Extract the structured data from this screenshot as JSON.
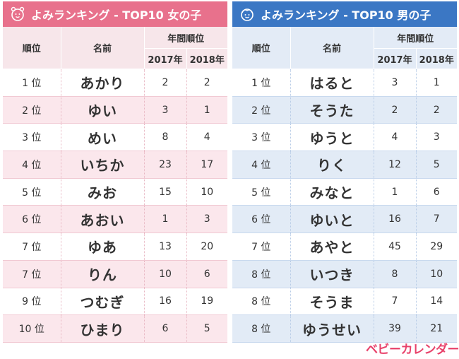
{
  "girls": {
    "title": "よみランキング - TOP10 女の子",
    "col_rank": "順位",
    "col_name": "名前",
    "col_yearly": "年間順位",
    "col_2017": "2017年",
    "col_2018": "2018年",
    "rows": [
      {
        "rank": "1 位",
        "name": "あかり",
        "y2017": "2",
        "y2018": "2"
      },
      {
        "rank": "2 位",
        "name": "ゆい",
        "y2017": "3",
        "y2018": "1"
      },
      {
        "rank": "3 位",
        "name": "めい",
        "y2017": "8",
        "y2018": "4"
      },
      {
        "rank": "4 位",
        "name": "いちか",
        "y2017": "23",
        "y2018": "17"
      },
      {
        "rank": "5 位",
        "name": "みお",
        "y2017": "15",
        "y2018": "10"
      },
      {
        "rank": "6 位",
        "name": "あおい",
        "y2017": "1",
        "y2018": "3"
      },
      {
        "rank": "7 位",
        "name": "ゆあ",
        "y2017": "13",
        "y2018": "20"
      },
      {
        "rank": "7 位",
        "name": "りん",
        "y2017": "10",
        "y2018": "6"
      },
      {
        "rank": "9 位",
        "name": "つむぎ",
        "y2017": "16",
        "y2018": "19"
      },
      {
        "rank": "10 位",
        "name": "ひまり",
        "y2017": "6",
        "y2018": "5"
      }
    ]
  },
  "boys": {
    "title": "よみランキング - TOP10 男の子",
    "col_rank": "順位",
    "col_name": "名前",
    "col_yearly": "年間順位",
    "col_2017": "2017年",
    "col_2018": "2018年",
    "rows": [
      {
        "rank": "1 位",
        "name": "はると",
        "y2017": "3",
        "y2018": "1"
      },
      {
        "rank": "2 位",
        "name": "そうた",
        "y2017": "2",
        "y2018": "2"
      },
      {
        "rank": "3 位",
        "name": "ゆうと",
        "y2017": "4",
        "y2018": "3"
      },
      {
        "rank": "4 位",
        "name": "りく",
        "y2017": "12",
        "y2018": "5"
      },
      {
        "rank": "5 位",
        "name": "みなと",
        "y2017": "1",
        "y2018": "6"
      },
      {
        "rank": "6 位",
        "name": "ゆいと",
        "y2017": "16",
        "y2018": "7"
      },
      {
        "rank": "7 位",
        "name": "あやと",
        "y2017": "45",
        "y2018": "29"
      },
      {
        "rank": "8 位",
        "name": "いつき",
        "y2017": "8",
        "y2018": "10"
      },
      {
        "rank": "8 位",
        "name": "そうま",
        "y2017": "7",
        "y2018": "14"
      },
      {
        "rank": "8 位",
        "name": "ゆうせい",
        "y2017": "39",
        "y2018": "21"
      }
    ]
  },
  "logo_text": "ベビーカレンダー",
  "colors": {
    "girls_accent": "#e8718c",
    "boys_accent": "#3b77c4",
    "logo": "#e8416a"
  },
  "icons": {
    "girls": "girl-face-icon",
    "boys": "boy-face-icon"
  }
}
